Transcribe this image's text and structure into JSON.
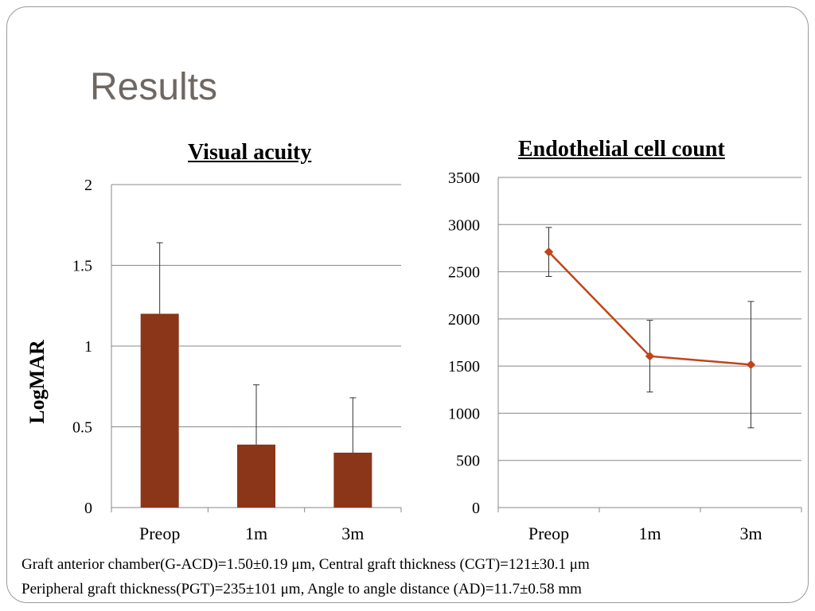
{
  "slide": {
    "title": "Results",
    "footnotes": [
      "Graft  anterior chamber(G-ACD)=1.50±0.19 μm, Central graft thickness (CGT)=121±30.1 μm",
      "Peripheral graft thickness(PGT)=235±101 μm, Angle to angle distance (AD)=11.7±0.58 mm"
    ]
  },
  "colors": {
    "bar": "#8b3519",
    "line": "#c0441a",
    "grid": "#888888",
    "text": "#000000"
  },
  "chart_data": [
    {
      "type": "bar",
      "title": "Visual acuity",
      "ylabel": "LogMAR",
      "xlabel": "",
      "categories": [
        "Preop",
        "1m",
        "3m"
      ],
      "values": [
        1.2,
        0.39,
        0.34
      ],
      "error_plus": [
        0.44,
        0.37,
        0.34
      ],
      "ylim": [
        0,
        2
      ],
      "yticks": [
        "0",
        "0.5",
        "1",
        "1.5",
        "2"
      ],
      "grid": true
    },
    {
      "type": "line",
      "title": "Endothelial cell count",
      "ylabel": "",
      "xlabel": "",
      "categories": [
        "Preop",
        "1m",
        "3m"
      ],
      "values": [
        2710,
        1605,
        1515
      ],
      "error": [
        260,
        380,
        670
      ],
      "ylim": [
        0,
        3500
      ],
      "yticks": [
        "0",
        "500",
        "1000",
        "1500",
        "2000",
        "2500",
        "3000",
        "3500"
      ],
      "grid": true
    }
  ]
}
